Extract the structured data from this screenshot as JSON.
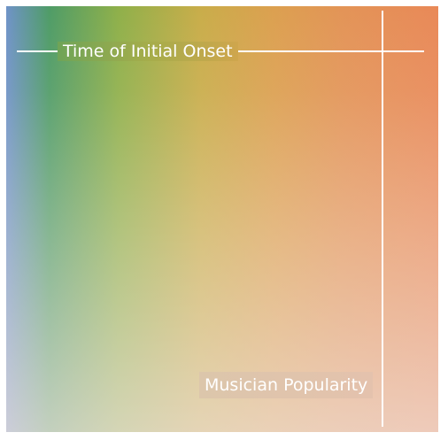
{
  "diagram": {
    "horizontal_axis_label": "Time of Initial Onset",
    "vertical_axis_label": "Musician Popularity"
  },
  "colors": {
    "gradient_left": "#6f93c8",
    "gradient_green": "#4f9c67",
    "gradient_yellow": "#c9ad4a",
    "gradient_orange": "#e98958",
    "axis_lines": "#ffffff"
  }
}
